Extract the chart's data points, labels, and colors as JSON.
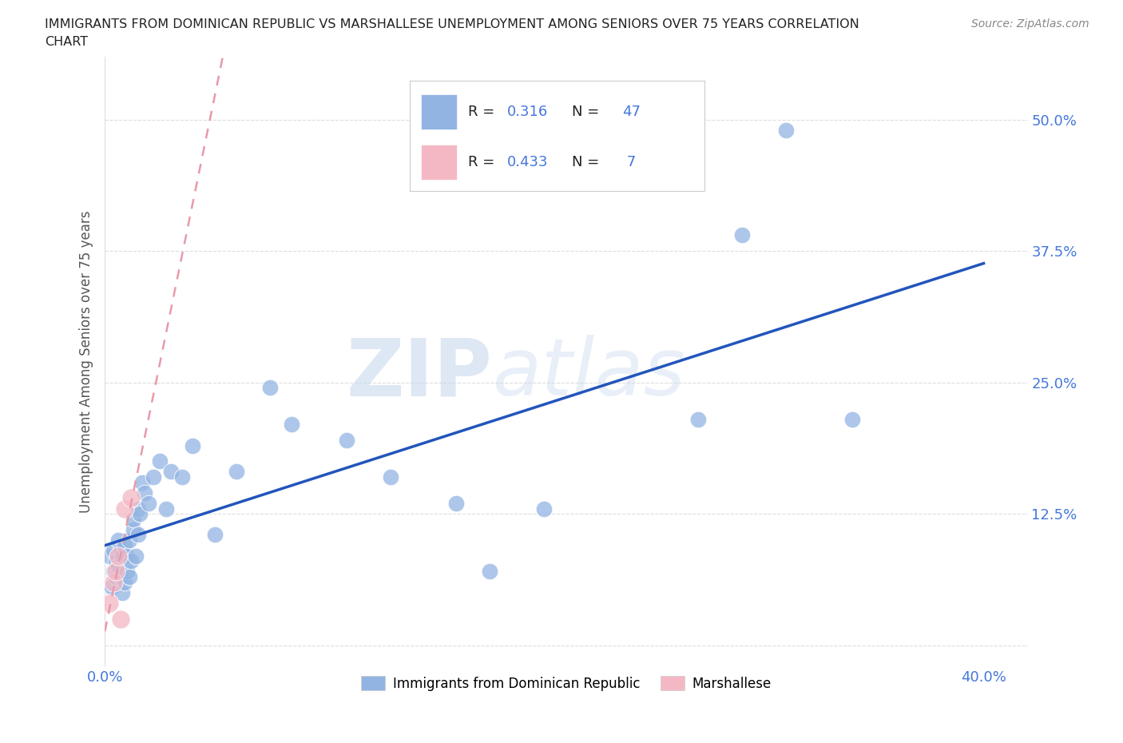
{
  "title_line1": "IMMIGRANTS FROM DOMINICAN REPUBLIC VS MARSHALLESE UNEMPLOYMENT AMONG SENIORS OVER 75 YEARS CORRELATION",
  "title_line2": "CHART",
  "source": "Source: ZipAtlas.com",
  "ylabel": "Unemployment Among Seniors over 75 years",
  "xlim": [
    0.0,
    0.42
  ],
  "ylim": [
    -0.02,
    0.56
  ],
  "xticks": [
    0.0,
    0.1,
    0.2,
    0.3,
    0.4
  ],
  "xticklabels": [
    "0.0%",
    "",
    "",
    "",
    "40.0%"
  ],
  "yticks": [
    0.0,
    0.125,
    0.25,
    0.375,
    0.5
  ],
  "yticklabels": [
    "",
    "12.5%",
    "25.0%",
    "37.5%",
    "50.0%"
  ],
  "blue_R": 0.316,
  "blue_N": 47,
  "pink_R": 0.433,
  "pink_N": 7,
  "blue_color": "#92b4e3",
  "pink_color": "#f4b8c4",
  "blue_line_color": "#2255bb",
  "pink_line_color": "#e89aaa",
  "legend_label_blue": "Immigrants from Dominican Republic",
  "legend_label_pink": "Marshallese",
  "watermark_zip": "ZIP",
  "watermark_atlas": "atlas",
  "blue_x": [
    0.002,
    0.003,
    0.004,
    0.004,
    0.005,
    0.005,
    0.006,
    0.006,
    0.007,
    0.007,
    0.008,
    0.008,
    0.009,
    0.009,
    0.01,
    0.01,
    0.011,
    0.011,
    0.012,
    0.013,
    0.013,
    0.014,
    0.015,
    0.015,
    0.016,
    0.017,
    0.018,
    0.02,
    0.022,
    0.025,
    0.028,
    0.03,
    0.035,
    0.04,
    0.05,
    0.06,
    0.075,
    0.085,
    0.11,
    0.13,
    0.16,
    0.2,
    0.27,
    0.31,
    0.34,
    0.29,
    0.175
  ],
  "blue_y": [
    0.085,
    0.055,
    0.07,
    0.09,
    0.065,
    0.08,
    0.075,
    0.1,
    0.065,
    0.09,
    0.05,
    0.085,
    0.06,
    0.095,
    0.07,
    0.085,
    0.065,
    0.1,
    0.08,
    0.11,
    0.12,
    0.085,
    0.105,
    0.13,
    0.125,
    0.155,
    0.145,
    0.135,
    0.16,
    0.175,
    0.13,
    0.165,
    0.16,
    0.19,
    0.105,
    0.165,
    0.245,
    0.21,
    0.195,
    0.16,
    0.135,
    0.13,
    0.215,
    0.49,
    0.215,
    0.39,
    0.07
  ],
  "pink_x": [
    0.002,
    0.004,
    0.005,
    0.006,
    0.007,
    0.009,
    0.012
  ],
  "pink_y": [
    0.04,
    0.06,
    0.07,
    0.085,
    0.025,
    0.13,
    0.14
  ],
  "background_color": "#ffffff",
  "grid_color": "#dddddd",
  "title_color": "#222222",
  "axis_label_color": "#555555",
  "tick_label_color": "#4477dd",
  "legend_border_color": "#cccccc",
  "legend_text_dark": "#222222",
  "legend_text_blue": "#4477dd"
}
